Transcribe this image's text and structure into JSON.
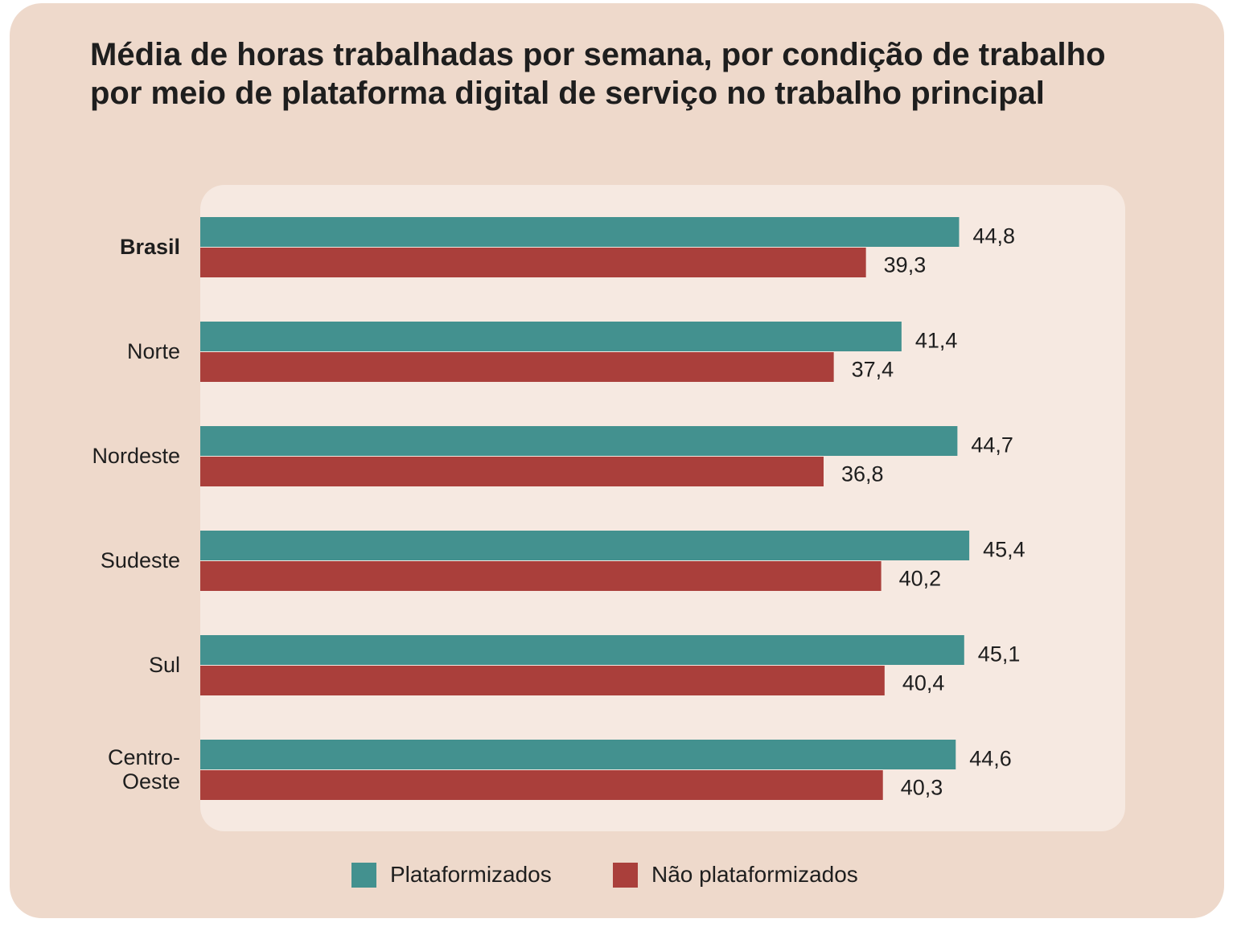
{
  "chart_data": {
    "type": "bar",
    "orientation": "horizontal",
    "title": "Média de horas trabalhadas por semana, por condição de trabalho por meio de plataforma digital de serviço no trabalho principal",
    "categories": [
      "Brasil",
      "Norte",
      "Nordeste",
      "Sudeste",
      "Sul",
      "Centro-Oeste"
    ],
    "category_lines": [
      [
        "Brasil"
      ],
      [
        "Norte"
      ],
      [
        "Nordeste"
      ],
      [
        "Sudeste"
      ],
      [
        "Sul"
      ],
      [
        "Centro-",
        "Oeste"
      ]
    ],
    "series": [
      {
        "name": "Plataformizados",
        "color": "#43918F",
        "values": [
          44.8,
          41.4,
          44.7,
          45.4,
          45.1,
          44.6
        ],
        "labels": [
          "44,8",
          "41,4",
          "44,7",
          "45,4",
          "45,1",
          "44,6"
        ]
      },
      {
        "name": "Não plataformizados",
        "color": "#AA3F3B",
        "values": [
          39.3,
          37.4,
          36.8,
          40.2,
          40.4,
          40.3
        ],
        "labels": [
          "39,3",
          "37,4",
          "36,8",
          "40,2",
          "40,4",
          "40,3"
        ]
      }
    ],
    "xlim": [
      0,
      54.6
    ],
    "grid": false,
    "legend_position": "bottom-center"
  }
}
